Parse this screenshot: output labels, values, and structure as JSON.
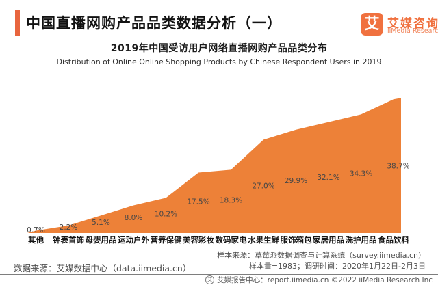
{
  "header": {
    "title": "中国直播网购产品品类数据分析（一）",
    "accent_color": "#e8653e",
    "logo": {
      "mark": "艾",
      "box_color": "#f0713f",
      "name_cn": "艾媒咨询",
      "name_en": "iiMedia Research",
      "text_color": "#f0713f",
      "text_color_light": "#f0845a"
    }
  },
  "subtitle": {
    "cn": "2019年中国受访用户网络直播网购产品品类分布",
    "en": "Distribution of Online Online Shopping Products by Chinese Respondent Users in 2019"
  },
  "chart_data": {
    "type": "area",
    "title": "2019年中国受访用户网络直播网购产品品类分布",
    "categories": [
      "其他",
      "钟表首饰",
      "母婴用品",
      "运动户外",
      "营养保健",
      "美容彩妆",
      "数码家电",
      "水果生鲜",
      "服饰箱包",
      "家居用品",
      "洗护用品",
      "食品饮料"
    ],
    "values": [
      0.7,
      2.2,
      5.1,
      8.0,
      10.2,
      17.5,
      18.3,
      27.0,
      29.9,
      32.1,
      34.3,
      38.7
    ],
    "labels": [
      "0.7%",
      "2.2%",
      "5.1%",
      "8.0%",
      "10.2%",
      "17.5%",
      "18.3%",
      "27.0%",
      "29.9%",
      "32.1%",
      "34.3%",
      "38.7%"
    ],
    "unit": "%",
    "ylim": [
      0,
      40
    ],
    "grid": false,
    "legend": null,
    "fill_color": "#ed8138",
    "label_color": "#464646"
  },
  "footer": {
    "source_left": "数据来源：艾媒数据中心（data.iimedia.cn）",
    "sample_source": "样本来源：草莓派数据调查与计算系统（survey.iimedia.cn）",
    "sample_info": "样本量=1983；调研时间：2020年1月22日-2月3日",
    "stamp_glyph": "艾",
    "bottom_bar": "艾媒报告中心：report.iimedia.cn  ©2022  iiMedia Research  Inc"
  }
}
